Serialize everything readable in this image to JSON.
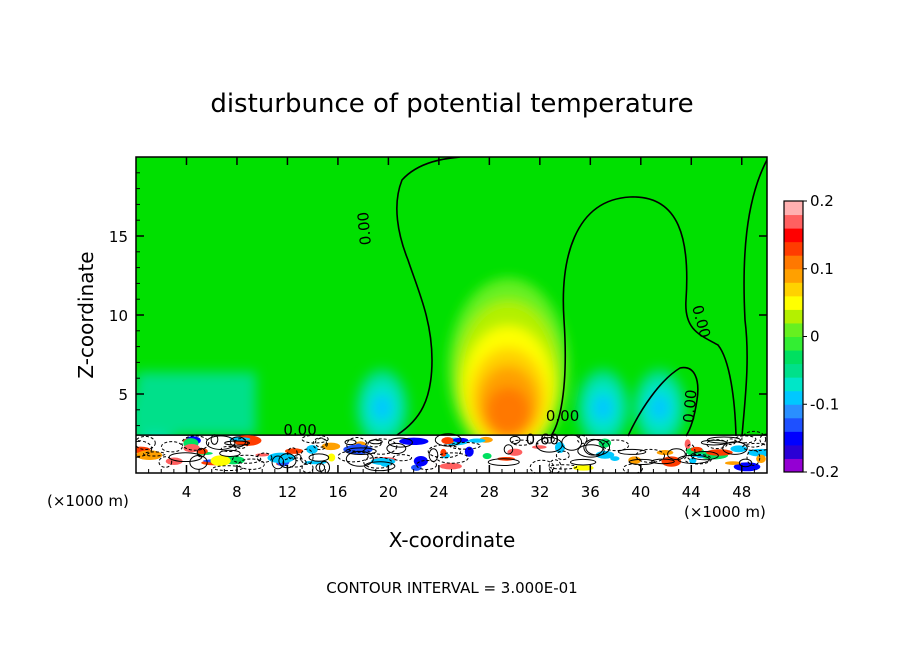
{
  "chart_data": {
    "type": "heatmap",
    "title": "disturbunce of potential temperature",
    "xlabel": "X-coordinate",
    "ylabel": "Z-coordinate",
    "x_unit": "(×1000 m)",
    "xlim": [
      0,
      50
    ],
    "ylim": [
      0,
      20
    ],
    "x_ticks": [
      4,
      8,
      12,
      16,
      20,
      24,
      28,
      32,
      36,
      40,
      44,
      48
    ],
    "y_ticks": [
      5,
      10,
      15
    ],
    "colorbar": {
      "range": [
        -0.2,
        0.2
      ],
      "labels": [
        "0.2",
        "0.1",
        "0",
        "-0.1",
        "-0.2"
      ],
      "label_values": [
        0.2,
        0.1,
        0,
        -0.1,
        -0.2
      ],
      "colors": [
        "#9400d3",
        "#2a00d5",
        "#0000ff",
        "#1e50ff",
        "#2a8fff",
        "#00c8ff",
        "#00e6c8",
        "#00e08a",
        "#00e060",
        "#33ee33",
        "#66f020",
        "#b4f000",
        "#ffff00",
        "#ffd200",
        "#ffa000",
        "#ff7800",
        "#ff3c00",
        "#ff0000",
        "#ff6060",
        "#ffb0b0"
      ]
    },
    "contour_labels": [
      {
        "text": "0.00",
        "x": 18.5,
        "z": 15.5,
        "rotate": -95
      },
      {
        "text": "0.00",
        "x": 44.4,
        "z": 9.5,
        "rotate": 75
      },
      {
        "text": "0.00",
        "x": 44.3,
        "z": 4.2,
        "rotate": -85
      },
      {
        "text": "0.00",
        "x": 33.8,
        "z": 3.3,
        "rotate": 0
      },
      {
        "text": "0.60",
        "x": 32.2,
        "z": 1.8,
        "rotate": 0
      },
      {
        "text": "0.00",
        "x": 13.0,
        "z": 2.4,
        "rotate": 0
      }
    ],
    "warm_anomaly": {
      "x_center": 29.5,
      "z_center": 4.2,
      "max_value": 0.13
    },
    "cold_anomalies": [
      {
        "x_center": 1.5,
        "z_center": 3.0,
        "min_value": -0.06
      },
      {
        "x_center": 19.5,
        "z_center": 3.5,
        "min_value": -0.09
      },
      {
        "x_center": 37.0,
        "z_center": 3.5,
        "min_value": -0.1
      },
      {
        "x_center": 41.5,
        "z_center": 3.5,
        "min_value": -0.08
      }
    ],
    "annotation": "CONTOUR INTERVAL = 3.000E-01"
  }
}
